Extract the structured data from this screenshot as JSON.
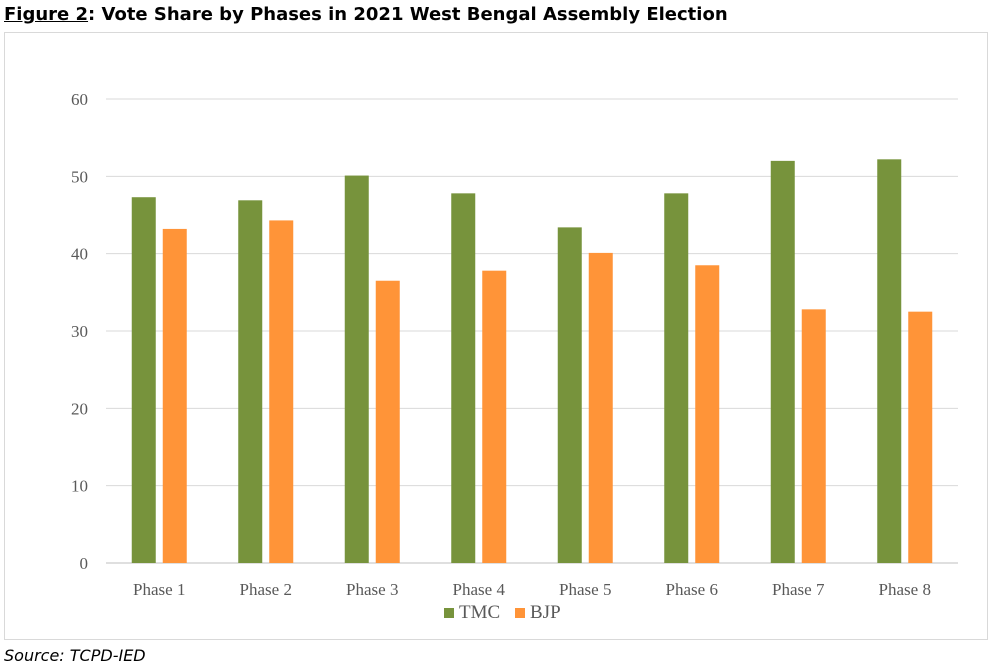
{
  "figure": {
    "label": "Figure 2",
    "title": ": Vote Share by Phases in 2021 West Bengal Assembly Election",
    "source": "Source: TCPD-IED"
  },
  "chart_data": {
    "type": "bar",
    "title": "",
    "xlabel": "",
    "ylabel": "",
    "categories": [
      "Phase 1",
      "Phase 2",
      "Phase 3",
      "Phase 4",
      "Phase 5",
      "Phase 6",
      "Phase 7",
      "Phase 8"
    ],
    "series": [
      {
        "name": "TMC",
        "color": "#77933c",
        "values": [
          47.3,
          46.9,
          50.1,
          47.8,
          43.4,
          47.8,
          52.0,
          52.2
        ]
      },
      {
        "name": "BJP",
        "color": "#ff9438",
        "values": [
          43.2,
          44.3,
          36.5,
          37.8,
          40.1,
          38.5,
          32.8,
          32.5
        ]
      }
    ],
    "ylim": [
      0,
      60
    ],
    "yticks": [
      0,
      10,
      20,
      30,
      40,
      50,
      60
    ],
    "grid": true,
    "legend": "bottom"
  }
}
